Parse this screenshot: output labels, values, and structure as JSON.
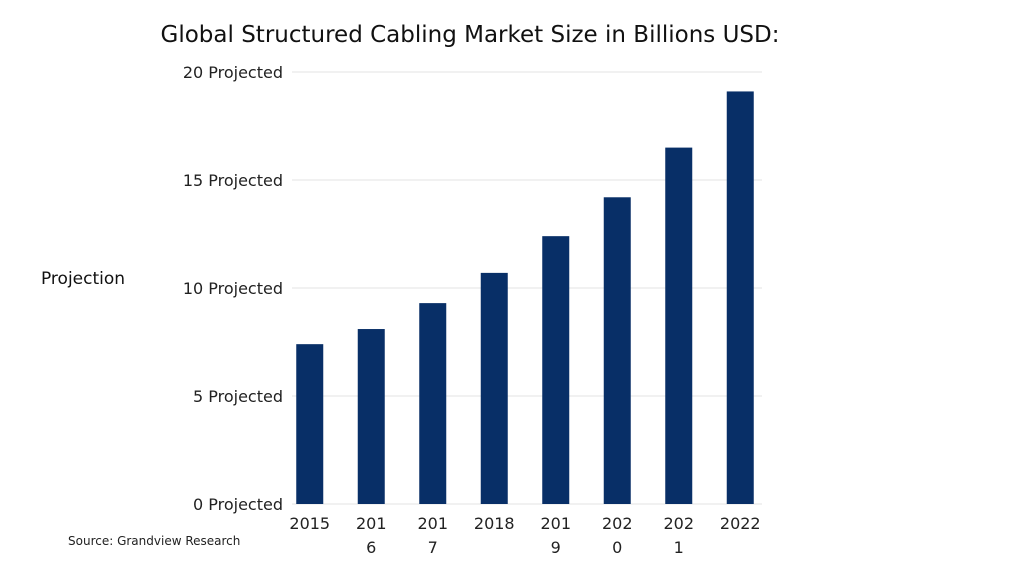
{
  "chart_data": {
    "type": "bar",
    "title": "Global Structured Cabling Market Size in Billions USD:",
    "ylabel": "Projection",
    "xlabel": "",
    "categories": [
      "2015",
      "201\n6",
      "201\n7",
      "2018",
      "201\n9",
      "202\n0",
      "202\n1",
      "2022"
    ],
    "values": [
      7.4,
      8.1,
      9.3,
      10.7,
      12.4,
      14.2,
      16.5,
      19.1
    ],
    "ylim": [
      0,
      20
    ],
    "yticks": [
      0,
      5,
      10,
      15,
      20
    ],
    "ytick_labels": [
      "0 Projected",
      "5 Projected",
      "10 Projected",
      "15 Projected",
      "20 Projected"
    ],
    "grid": true,
    "bar_color": "#082f67",
    "source": "Source: Grandview Research"
  }
}
